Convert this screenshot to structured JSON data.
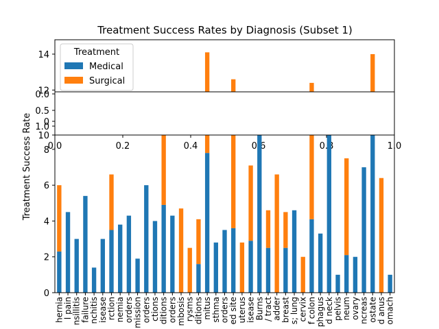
{
  "chart_data": {
    "type": "bar",
    "stacked": true,
    "broken_axis": true,
    "title": "Treatment Success Rates by Diagnosis (Subset 1)",
    "ylabel": "Treatment Success Rate",
    "xlabel": "",
    "legend": {
      "title": "Treatment",
      "placement": "top-left"
    },
    "upper_ylim": [
      11.9,
      14.8
    ],
    "upper_yticks": [
      "12",
      "14"
    ],
    "lower_ylim": [
      0,
      8.8
    ],
    "lower_yticks": [
      "0",
      "2",
      "4",
      "6",
      "8"
    ],
    "inset_yticks": [
      "0.0",
      "0.5",
      "1.0",
      "0",
      "10"
    ],
    "inset_xticks": [
      "0.0",
      "0.2",
      "0.4",
      "0.6",
      "0.8",
      "1.0"
    ],
    "categories": [
      "hernia",
      "l pain",
      "nsillitis",
      "failure",
      "nchitis",
      "isease",
      "rction",
      "nemia",
      "orders",
      "mission",
      "orders",
      "ctions",
      "ditions",
      "orders",
      "mbosis",
      "rysms",
      "ditions",
      "mitus",
      "sthma",
      "orders",
      "ed site",
      "uterus",
      "isease",
      "Burns",
      "/ tract",
      "adder",
      "breast",
      "s; lung",
      "cervix",
      "f colon",
      "phagus",
      "d neck",
      "pelvis",
      "neum",
      "ovary",
      "ncreas",
      "ostate",
      "d anus",
      "omach"
    ],
    "series": [
      {
        "name": "Medical",
        "color": "#1f77b4",
        "values": [
          2.3,
          4.5,
          3.0,
          5.4,
          1.4,
          3.0,
          3.5,
          3.8,
          4.3,
          1.9,
          6.0,
          4.0,
          4.9,
          4.3,
          0,
          0,
          1.6,
          7.8,
          2.8,
          3.5,
          3.6,
          0,
          2.9,
          9.8,
          2.5,
          0,
          2.5,
          4.6,
          0,
          4.1,
          3.3,
          10.2,
          1.0,
          2.1,
          2.0,
          7.0,
          11.4,
          0,
          1.0
        ]
      },
      {
        "name": "Surgical",
        "color": "#ff7f0e",
        "values": [
          3.7,
          0,
          0,
          0,
          0,
          0,
          3.1,
          0,
          0,
          0,
          0,
          0,
          4.5,
          0,
          4.7,
          2.5,
          2.5,
          6.3,
          0,
          0,
          9.0,
          2.8,
          4.2,
          0,
          2.1,
          6.6,
          2.0,
          0,
          2.0,
          8.3,
          0,
          0,
          0,
          5.4,
          0,
          0,
          2.6,
          6.4,
          0
        ]
      }
    ]
  }
}
